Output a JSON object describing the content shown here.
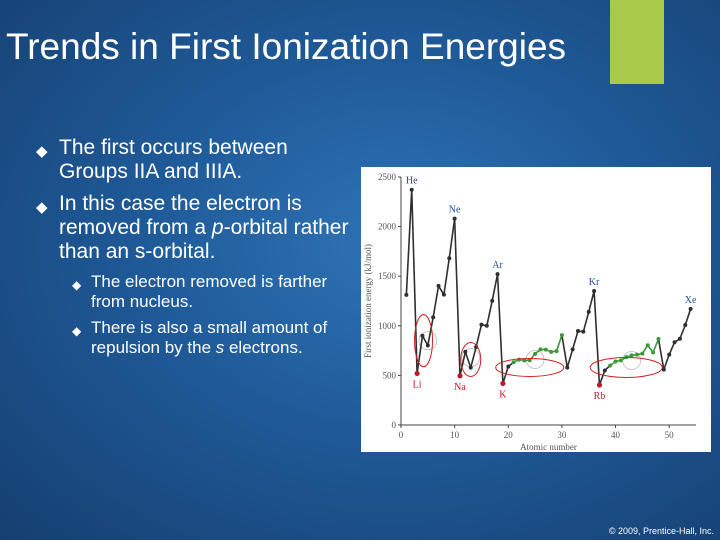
{
  "slide": {
    "title": "Trends in First Ionization Energies",
    "copyright": "© 2009, Prentice-Hall, Inc.",
    "accent_color": "#a8c94a"
  },
  "bullets": [
    {
      "pre": "The first occurs between Groups IIA and IIIA.",
      "em": "",
      "post": ""
    },
    {
      "pre": "In this case the electron is removed from a ",
      "em": "p",
      "post": "-orbital rather than an s-orbital."
    }
  ],
  "sub_bullets": [
    {
      "pre": "The electron removed is farther from nucleus.",
      "em": "",
      "post": ""
    },
    {
      "pre": "There is also a small amount of repulsion by the ",
      "em": "s",
      "post": " electrons."
    }
  ],
  "icons": {
    "bullet": "diamond-icon"
  },
  "chart_data": {
    "type": "line",
    "xlabel": "Atomic number",
    "ylabel": "First ionization energy (kJ/mol)",
    "xlim": [
      0,
      55
    ],
    "ylim": [
      0,
      2500
    ],
    "xticks": [
      0,
      10,
      20,
      30,
      40,
      50
    ],
    "yticks": [
      0,
      500,
      1000,
      1500,
      2000,
      2500
    ],
    "series": [
      {
        "color": "#2f2f2f",
        "values": [
          [
            1,
            1312
          ],
          [
            2,
            2372
          ],
          [
            3,
            520
          ],
          [
            4,
            900
          ],
          [
            5,
            801
          ],
          [
            6,
            1086
          ],
          [
            7,
            1402
          ],
          [
            8,
            1314
          ],
          [
            9,
            1681
          ],
          [
            10,
            2081
          ],
          [
            11,
            496
          ],
          [
            12,
            738
          ],
          [
            13,
            578
          ],
          [
            14,
            786
          ],
          [
            15,
            1012
          ],
          [
            16,
            1000
          ],
          [
            17,
            1251
          ],
          [
            18,
            1521
          ],
          [
            19,
            419
          ],
          [
            20,
            590
          ],
          [
            31,
            579
          ],
          [
            32,
            762
          ],
          [
            33,
            947
          ],
          [
            34,
            941
          ],
          [
            35,
            1140
          ],
          [
            36,
            1351
          ],
          [
            37,
            403
          ],
          [
            38,
            550
          ],
          [
            49,
            558
          ],
          [
            50,
            709
          ],
          [
            51,
            834
          ],
          [
            52,
            869
          ],
          [
            53,
            1008
          ],
          [
            54,
            1170
          ]
        ]
      },
      {
        "color": "#3a9a3a",
        "values": [
          [
            21,
            633
          ],
          [
            22,
            659
          ],
          [
            23,
            651
          ],
          [
            24,
            653
          ],
          [
            25,
            717
          ],
          [
            26,
            762
          ],
          [
            27,
            760
          ],
          [
            28,
            737
          ],
          [
            29,
            745
          ],
          [
            30,
            906
          ],
          [
            39,
            600
          ],
          [
            40,
            640
          ],
          [
            41,
            652
          ],
          [
            42,
            684
          ],
          [
            43,
            702
          ],
          [
            44,
            710
          ],
          [
            45,
            720
          ],
          [
            46,
            804
          ],
          [
            47,
            731
          ],
          [
            48,
            868
          ]
        ]
      }
    ],
    "annotations": [
      {
        "label": "He",
        "x": 2,
        "y": 2372,
        "color": "#1f4f9a"
      },
      {
        "label": "Ne",
        "x": 10,
        "y": 2081,
        "color": "#1f4f9a"
      },
      {
        "label": "Ar",
        "x": 18,
        "y": 1521,
        "color": "#1f4f9a"
      },
      {
        "label": "Kr",
        "x": 36,
        "y": 1351,
        "color": "#1f4f9a"
      },
      {
        "label": "Xe",
        "x": 54,
        "y": 1170,
        "color": "#1f4f9a"
      },
      {
        "label": "Li",
        "x": 3,
        "y": 520,
        "color": "#c0182a"
      },
      {
        "label": "Na",
        "x": 11,
        "y": 496,
        "color": "#c0182a"
      },
      {
        "label": "K",
        "x": 19,
        "y": 419,
        "color": "#c0182a"
      },
      {
        "label": "Rb",
        "x": 37,
        "y": 403,
        "color": "#c0182a"
      }
    ],
    "highlights": [
      {
        "x": 5,
        "y": 850,
        "color": "#c0182a"
      },
      {
        "x": 13,
        "y": 680,
        "color": "#c0182a"
      },
      {
        "x": 25,
        "y": 660,
        "color": "#c0182a"
      },
      {
        "x": 43,
        "y": 650,
        "color": "#c0182a"
      }
    ]
  }
}
